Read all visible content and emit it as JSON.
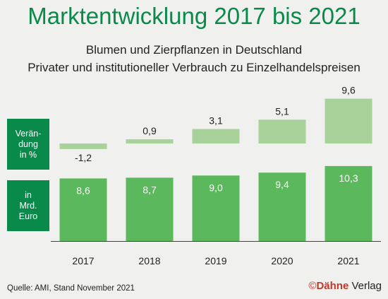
{
  "title": "Marktentwicklung 2017 bis 2021",
  "subtitle_line1": "Blumen und Zierpflanzen in Deutschland",
  "subtitle_line2": "Privater und institutioneller Verbrauch zu Einzelhandelspreisen",
  "labels": {
    "change": "Verän-\ndung\nin %",
    "volume": "in\nMrd.\nEuro"
  },
  "source": "Quelle: AMI, Stand November 2021",
  "brand": {
    "copyright": "©",
    "name": "Dähne",
    "suffix": " Verlag"
  },
  "colors": {
    "accent": "#0a8a4a",
    "change_bar": "#a8d29a",
    "volume_bar": "#5cb85c"
  },
  "chart_data": {
    "type": "bar",
    "categories": [
      "2017",
      "2018",
      "2019",
      "2020",
      "2021"
    ],
    "series": [
      {
        "values": [
          -1.2,
          0.9,
          3.1,
          5.1,
          9.6
        ],
        "labels": [
          "-1,2",
          "0,9",
          "3,1",
          "5,1",
          "9,6"
        ]
      },
      {
        "values": [
          8.6,
          8.7,
          9.0,
          9.4,
          10.3
        ],
        "labels": [
          "8,6",
          "8,7",
          "9,0",
          "9,4",
          "10,3"
        ]
      }
    ]
  }
}
